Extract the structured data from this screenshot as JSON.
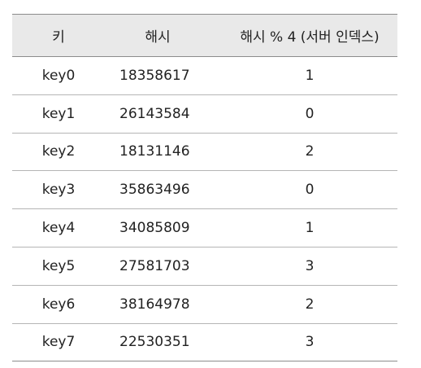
{
  "table": {
    "headers": {
      "key": "키",
      "hash": "해시",
      "server_index": "해시 % 4 (서버 인덱스)"
    },
    "rows": [
      {
        "key": "key0",
        "hash": "18358617",
        "server_index": "1"
      },
      {
        "key": "key1",
        "hash": "26143584",
        "server_index": "0"
      },
      {
        "key": "key2",
        "hash": "18131146",
        "server_index": "2"
      },
      {
        "key": "key3",
        "hash": "35863496",
        "server_index": "0"
      },
      {
        "key": "key4",
        "hash": "34085809",
        "server_index": "1"
      },
      {
        "key": "key5",
        "hash": "27581703",
        "server_index": "3"
      },
      {
        "key": "key6",
        "hash": "38164978",
        "server_index": "2"
      },
      {
        "key": "key7",
        "hash": "22530351",
        "server_index": "3"
      }
    ]
  }
}
